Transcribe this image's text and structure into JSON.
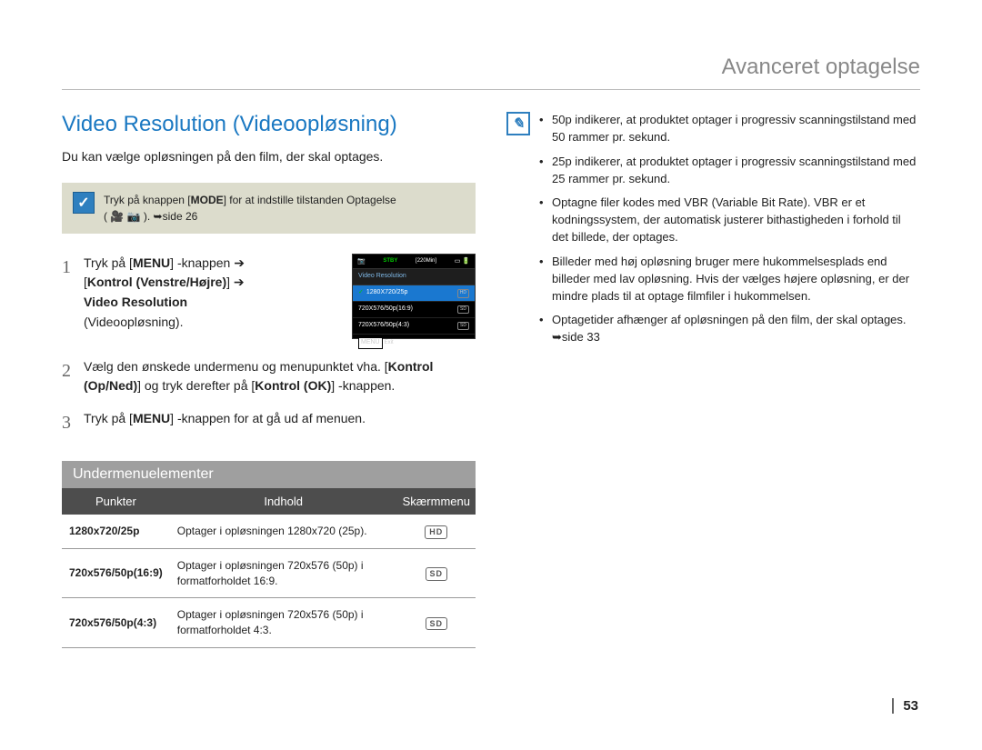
{
  "chapter": "Avanceret optagelse",
  "h1": "Video Resolution (Videoopløsning)",
  "intro": "Du kan vælge opløsningen på den film, der skal optages.",
  "tip_pre": "Tryk på knappen [",
  "tip_mode": "MODE",
  "tip_post": "] for at indstille tilstanden Optagelse",
  "tip_line2": "( 🎥 📷 ). ➥side 26",
  "step1a": "Tryk på [",
  "menu": "MENU",
  "step1b": "] -knappen ➔",
  "step1c": "[",
  "kontrol_lr": "Kontrol (Venstre/Højre)",
  "step1d": "] ➔",
  "vr_bold": "Video Resolution",
  "step1e": "(Videoopløsning).",
  "step2a": "Vælg den ønskede undermenu og menupunktet vha. [",
  "kontrol_ud": "Kontrol (Op/Ned)",
  "step2b": "] og tryk derefter på [",
  "kontrol_ok": "Kontrol (OK)",
  "step2c": "] -knappen.",
  "step3a": "Tryk på [",
  "step3b": "] -knappen for at gå ud af menuen.",
  "screen": {
    "stby": "STBY",
    "time": "[220Min]",
    "title": "Video Resolution",
    "opt1": "1280X720/25p",
    "opt2": "720X576/50p(16:9)",
    "opt3": "720X576/50p(4:3)",
    "sd": "SD",
    "hd": "HD",
    "exit": "Exit"
  },
  "h2": "Undermenuelementer",
  "table": {
    "th1": "Punkter",
    "th2": "Indhold",
    "th3": "Skærmmenu",
    "rows": [
      {
        "pk": "1280x720/25p",
        "desc": "Optager i opløsningen 1280x720 (25p).",
        "badge": "HD"
      },
      {
        "pk": "720x576/50p(16:9)",
        "desc": "Optager i opløsningen 720x576 (50p) i formatforholdet 16:9.",
        "badge": "SD"
      },
      {
        "pk": "720x576/50p(4:3)",
        "desc": "Optager i opløsningen 720x576 (50p) i formatforholdet 4:3.",
        "badge": "SD"
      }
    ]
  },
  "notes": [
    "50p indikerer, at produktet optager i progressiv scanningstilstand med 50 rammer pr. sekund.",
    "25p indikerer, at produktet optager i progressiv scanningstilstand med 25 rammer pr. sekund.",
    "Optagne filer kodes med VBR (Variable Bit Rate). VBR er et kodningssystem, der automatisk justerer bithastigheden i forhold til det billede, der optages.",
    "Billeder med høj opløsning bruger mere hukommelsesplads end billeder med lav opløsning. Hvis der vælges højere opløsning, er der mindre plads til at optage filmfiler i hukommelsen.",
    "Optagetider afhænger af opløsningen på den film, der skal optages. ➥side 33"
  ],
  "pagenum": "53"
}
